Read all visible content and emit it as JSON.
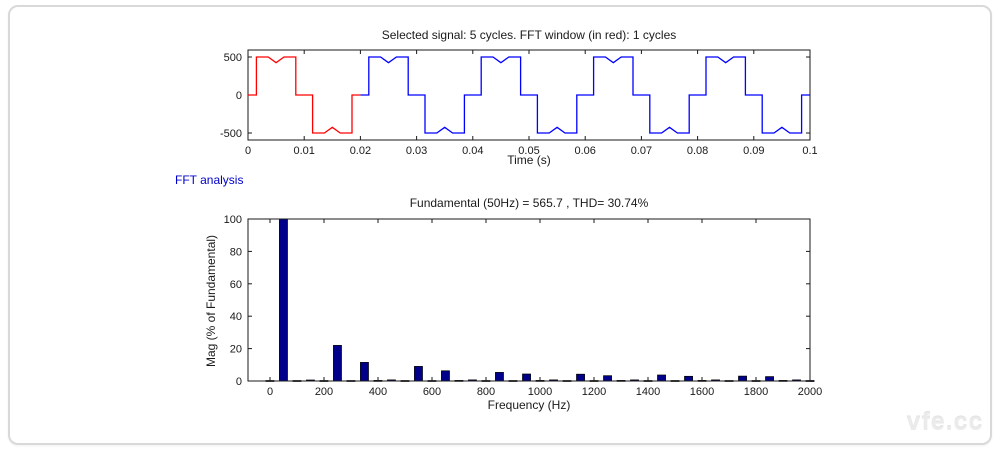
{
  "window": {
    "background_color": "#ffffff",
    "panel_border_color": "#d9d9d9"
  },
  "fft_analysis_label": {
    "text": "FFT analysis",
    "color": "#0000cc"
  },
  "watermark": {
    "text": "vfe.cc"
  },
  "chart_data": [
    {
      "id": "selected-signal",
      "type": "line",
      "title": "Selected signal: 5 cycles. FFT window (in red): 1 cycles",
      "xlabel": "Time (s)",
      "ylabel": "",
      "xlim": [
        0,
        0.1
      ],
      "ylim": [
        -590,
        590
      ],
      "xticks": [
        0,
        0.01,
        0.02,
        0.03,
        0.04,
        0.05,
        0.06,
        0.07,
        0.08,
        0.09,
        0.1
      ],
      "yticks": [
        500,
        0,
        -500
      ],
      "grid": false,
      "signal": {
        "period_s": 0.02,
        "cycles": 5,
        "fft_window_cycles": 1,
        "window_color": "#ff0000",
        "signal_color": "#0000ff",
        "amplitude": 500,
        "notch_level": 425,
        "cycle_points": [
          [
            0,
            0
          ],
          [
            0.0015,
            0
          ],
          [
            0.0015,
            500
          ],
          [
            0.0036,
            500
          ],
          [
            0.005,
            425
          ],
          [
            0.0064,
            500
          ],
          [
            0.0085,
            500
          ],
          [
            0.0085,
            0
          ],
          [
            0.0115,
            0
          ],
          [
            0.0115,
            -500
          ],
          [
            0.0136,
            -500
          ],
          [
            0.015,
            -425
          ],
          [
            0.0164,
            -500
          ],
          [
            0.0185,
            -500
          ],
          [
            0.0185,
            0
          ],
          [
            0.02,
            0
          ]
        ]
      }
    },
    {
      "id": "fft-spectrum",
      "type": "bar",
      "title": "Fundamental (50Hz) = 565.7 , THD= 30.74%",
      "xlabel": "Frequency (Hz)",
      "ylabel": "Mag (% of Fundamental)",
      "fundamental_hz": 50,
      "fundamental_value": 565.7,
      "thd_percent": 30.74,
      "xlim": [
        -80,
        2000
      ],
      "ylim": [
        0,
        100
      ],
      "xticks": [
        0,
        200,
        400,
        600,
        800,
        1000,
        1200,
        1400,
        1600,
        1800,
        2000
      ],
      "yticks": [
        0,
        20,
        40,
        60,
        80,
        100
      ],
      "grid": false,
      "bar_color": "#00008b",
      "bar_edge_color": "#000000",
      "bar_width_hz": 30,
      "harmonics": [
        [
          0,
          0.3
        ],
        [
          50,
          100
        ],
        [
          100,
          0.3
        ],
        [
          150,
          0.6
        ],
        [
          200,
          0.3
        ],
        [
          250,
          22
        ],
        [
          300,
          0.3
        ],
        [
          350,
          11.5
        ],
        [
          400,
          0.4
        ],
        [
          450,
          0.7
        ],
        [
          500,
          0.3
        ],
        [
          550,
          9
        ],
        [
          600,
          0.3
        ],
        [
          650,
          6.3
        ],
        [
          700,
          0.4
        ],
        [
          750,
          0.7
        ],
        [
          800,
          0.3
        ],
        [
          850,
          5.3
        ],
        [
          900,
          0.3
        ],
        [
          950,
          4.3
        ],
        [
          1000,
          0.4
        ],
        [
          1050,
          0.7
        ],
        [
          1100,
          0.3
        ],
        [
          1150,
          4.2
        ],
        [
          1200,
          0.3
        ],
        [
          1250,
          3.3
        ],
        [
          1300,
          0.4
        ],
        [
          1350,
          0.7
        ],
        [
          1400,
          0.3
        ],
        [
          1450,
          3.7
        ],
        [
          1500,
          0.3
        ],
        [
          1550,
          2.9
        ],
        [
          1600,
          0.4
        ],
        [
          1650,
          0.7
        ],
        [
          1700,
          0.3
        ],
        [
          1750,
          3.0
        ],
        [
          1800,
          0.3
        ],
        [
          1850,
          2.7
        ],
        [
          1900,
          0.4
        ],
        [
          1950,
          0.7
        ],
        [
          2000,
          0.3
        ]
      ]
    }
  ]
}
